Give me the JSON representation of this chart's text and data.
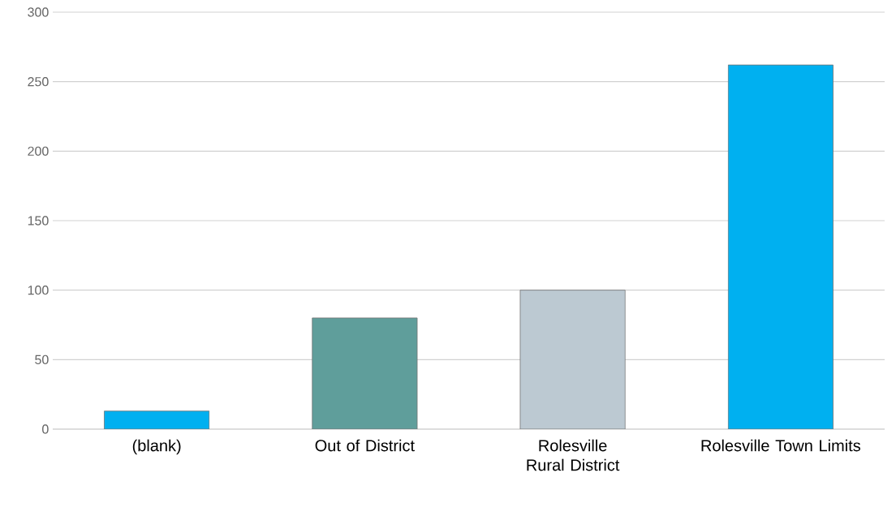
{
  "chart_data": {
    "type": "bar",
    "categories": [
      "(blank)",
      "Out of District",
      "Rolesville Rural District",
      "Rolesville Town Limits"
    ],
    "values": [
      13,
      80,
      100,
      262
    ],
    "colors": [
      "#00b0f0",
      "#5f9e9b",
      "#bcc9d2",
      "#00b0f0"
    ],
    "ylim": [
      0,
      300
    ],
    "yticks": [
      0,
      50,
      100,
      150,
      200,
      250,
      300
    ],
    "grid": "y"
  }
}
